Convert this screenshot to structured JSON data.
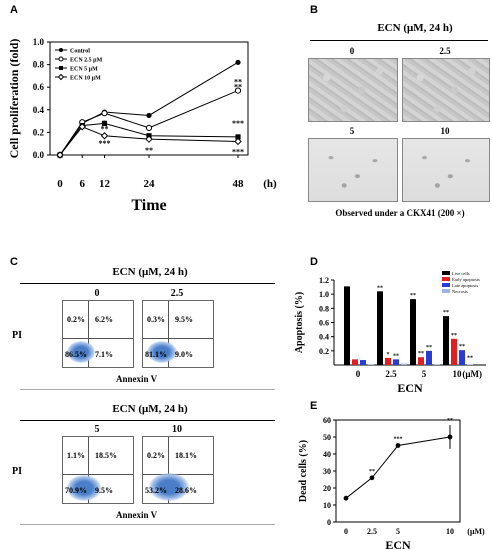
{
  "panels": {
    "a": {
      "letter": "A"
    },
    "b": {
      "letter": "B",
      "title": "ECN (μM, 24 h)",
      "labels": [
        "0",
        "2.5",
        "5",
        "10"
      ],
      "caption": "Observed under a CKX41 (200 ×)"
    },
    "c": {
      "letter": "C",
      "top": {
        "title": "ECN (μM, 24 h)",
        "doses": [
          "0",
          "2.5"
        ],
        "quadrants": [
          {
            "ul": "0.2%",
            "ur": "6.2%",
            "ll": "86.5%",
            "lr": "7.1%"
          },
          {
            "ul": "0.3%",
            "ur": "9.5%",
            "ll": "81.1%",
            "lr": "9.0%"
          }
        ]
      },
      "bottom": {
        "title": "ECN (μM, 24 h)",
        "doses": [
          "5",
          "10"
        ],
        "quadrants": [
          {
            "ul": "1.1%",
            "ur": "18.5%",
            "ll": "70.9%",
            "lr": "9.5%"
          },
          {
            "ul": "0.2%",
            "ur": "18.1%",
            "ll": "53.2%",
            "lr": "28.6%"
          }
        ]
      },
      "ylabel": "PI",
      "xlabel": "Annexin V"
    },
    "d": {
      "letter": "D"
    },
    "e": {
      "letter": "E"
    }
  },
  "chart_data": [
    {
      "panel": "A",
      "type": "line",
      "x": [
        0,
        6,
        12,
        24,
        48
      ],
      "x_ticks": [
        "0",
        "6",
        "12",
        "24",
        "48"
      ],
      "x_unit": "(h)",
      "xlabel": "Time",
      "ylabel": "Cell proliferation (fold)",
      "ylim": [
        0,
        1.0
      ],
      "y_ticks": [
        "0.0",
        "0.2",
        "0.4",
        "0.6",
        "0.8",
        "1.0"
      ],
      "series": [
        {
          "name": "Control",
          "values": [
            0.0,
            0.28,
            0.38,
            0.35,
            0.82
          ]
        },
        {
          "name": "ECN 2.5 μM",
          "values": [
            0.0,
            0.29,
            0.37,
            0.24,
            0.57
          ]
        },
        {
          "name": "ECN 5 μM",
          "values": [
            0.0,
            0.26,
            0.28,
            0.17,
            0.16
          ]
        },
        {
          "name": "ECN 10 μM",
          "values": [
            0.0,
            0.25,
            0.17,
            0.14,
            0.12
          ]
        }
      ],
      "annotations": [
        "**",
        "*",
        "**",
        "***",
        "*",
        "**",
        "**",
        "***",
        "***"
      ],
      "legend": "top-left"
    },
    {
      "panel": "D",
      "type": "bar",
      "categories": [
        "0",
        "2.5",
        "5",
        "10"
      ],
      "unit": "(μM)",
      "xlabel": "ECN",
      "ylabel": "Apoptosis (%)",
      "ylim": [
        0,
        1.2
      ],
      "y_ticks": [
        "0.2",
        "0.4",
        "0.6",
        "0.8",
        "1.0",
        "1.2"
      ],
      "series": [
        {
          "name": "Live cells",
          "color": "#000000",
          "values": [
            1.11,
            1.04,
            0.93,
            0.69
          ]
        },
        {
          "name": "Early apoptosis",
          "color": "#e02020",
          "values": [
            0.08,
            0.1,
            0.11,
            0.37
          ]
        },
        {
          "name": "Late apoptosis",
          "color": "#2a3cd6",
          "values": [
            0.07,
            0.08,
            0.2,
            0.21
          ]
        },
        {
          "name": "Necrosis",
          "color": "#9fb3e6",
          "values": [
            0.01,
            0.02,
            0.01,
            0.01
          ]
        }
      ],
      "annotations": [
        "**",
        "**",
        "*",
        "**",
        "**",
        "**",
        "**",
        "**",
        "**",
        "**"
      ],
      "legend": "top-right"
    },
    {
      "panel": "E",
      "type": "line",
      "x": [
        0,
        2.5,
        5,
        10
      ],
      "x_ticks": [
        "0",
        "2.5",
        "5",
        "10"
      ],
      "x_unit": "(μM)",
      "xlabel": "ECN",
      "ylabel": "Dead cells (%)",
      "ylim": [
        0,
        60
      ],
      "y_ticks": [
        "0",
        "10",
        "20",
        "30",
        "40",
        "50",
        "60"
      ],
      "series": [
        {
          "name": "",
          "values": [
            14,
            26,
            45,
            50
          ]
        }
      ],
      "annotations": [
        "**",
        "***",
        "**"
      ]
    }
  ]
}
